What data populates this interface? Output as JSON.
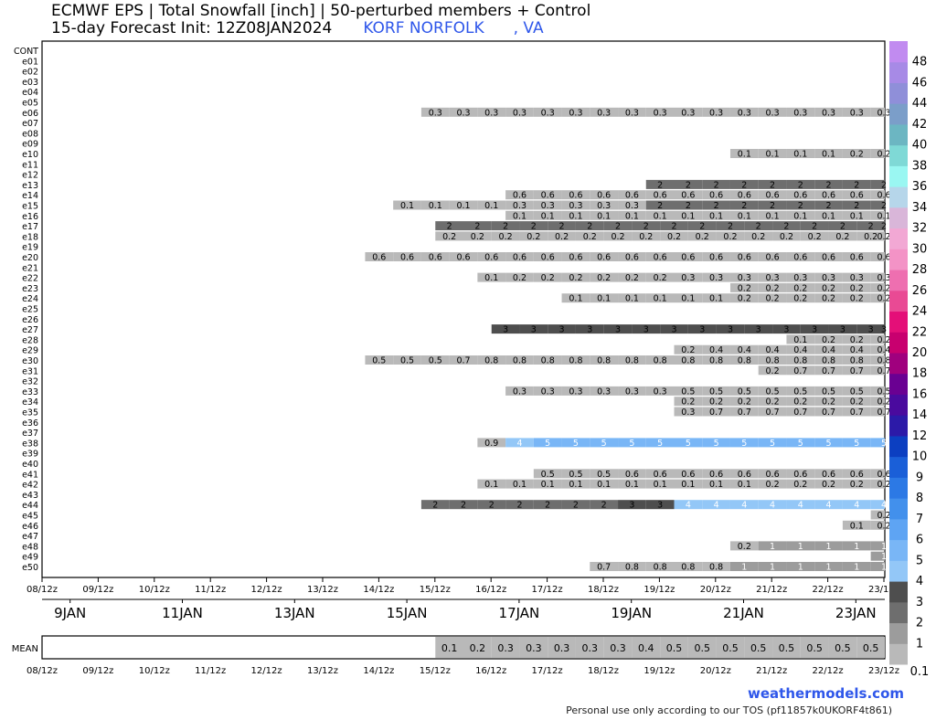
{
  "header": {
    "title_line1": "ECMWF EPS | Total Snowfall [inch] | 50-perturbed members + Control",
    "title_line2": "15-day Forecast Init: 12Z08JAN2024",
    "location": "KORF NORFOLK",
    "state": ", VA"
  },
  "footer": {
    "credit": "weathermodels.com",
    "tos": "Personal use only according to our TOS (pf11857k0UKORF4t861)"
  },
  "chart_data": {
    "type": "heatmap",
    "title": "ECMWF EPS | Total Snowfall [inch] | 50-perturbed members + Control",
    "members": [
      "CONT",
      "e01",
      "e02",
      "e03",
      "e04",
      "e05",
      "e06",
      "e07",
      "e08",
      "e09",
      "e10",
      "e11",
      "e12",
      "e13",
      "e14",
      "e15",
      "e16",
      "e17",
      "e18",
      "e19",
      "e20",
      "e21",
      "e22",
      "e23",
      "e24",
      "e25",
      "e26",
      "e27",
      "e28",
      "e29",
      "e30",
      "e31",
      "e32",
      "e33",
      "e34",
      "e35",
      "e36",
      "e37",
      "e38",
      "e39",
      "e40",
      "e41",
      "e42",
      "e43",
      "e44",
      "e45",
      "e46",
      "e47",
      "e48",
      "e49",
      "e50"
    ],
    "time_ticks": [
      "08/12z",
      "09/12z",
      "10/12z",
      "11/12z",
      "12/12z",
      "13/12z",
      "14/12z",
      "15/12z",
      "16/12z",
      "17/12z",
      "18/12z",
      "19/12z",
      "20/12z",
      "21/12z",
      "22/12z",
      "23/12z"
    ],
    "day_labels": [
      "9JAN",
      "11JAN",
      "13JAN",
      "15JAN",
      "17JAN",
      "19JAN",
      "21JAN",
      "23JAN"
    ],
    "step_hours": 12,
    "first_step": "08/12z",
    "n_steps": 31,
    "rows": {
      "e06": {
        "start": 14,
        "values": [
          "0.3",
          "0.3",
          "0.3",
          "0.3",
          "0.3",
          "0.3",
          "0.3",
          "0.3",
          "0.3",
          "0.3",
          "0.3",
          "0.3",
          "0.3",
          "0.3",
          "0.3",
          "0.3",
          "0.3"
        ]
      },
      "e10": {
        "start": 25,
        "values": [
          "0.1",
          "0.1",
          "0.1",
          "0.1",
          "0.2",
          "0.2"
        ]
      },
      "e13": {
        "start": 22,
        "values": [
          "2",
          "2",
          "2",
          "2",
          "2",
          "2",
          "2",
          "2",
          "2"
        ]
      },
      "e14": {
        "start": 17,
        "values": [
          "0.6",
          "0.6",
          "0.6",
          "0.6",
          "0.6",
          "0.6",
          "0.6",
          "0.6",
          "0.6",
          "0.6",
          "0.6",
          "0.6",
          "0.6",
          "0.6"
        ]
      },
      "e15": {
        "start": 13,
        "values": [
          "0.1",
          "0.1",
          "0.1",
          "0.1",
          "0.3",
          "0.3",
          "0.3",
          "0.3",
          "0.3",
          "2",
          "2",
          "2",
          "2",
          "2",
          "2",
          "2",
          "2",
          "2"
        ]
      },
      "e16": {
        "start": 17,
        "values": [
          "0.1",
          "0.1",
          "0.1",
          "0.1",
          "0.1",
          "0.1",
          "0.1",
          "0.1",
          "0.1",
          "0.1",
          "0.1",
          "0.1",
          "0.1",
          "0.1"
        ]
      },
      "e17": {
        "start": 14.5,
        "values": [
          "2",
          "2",
          "2",
          "2",
          "2",
          "2",
          "2",
          "2",
          "2",
          "2",
          "2",
          "2",
          "2",
          "2",
          "2",
          "2",
          "2"
        ]
      },
      "e18": {
        "start": 14.5,
        "values": [
          "0.2",
          "0.2",
          "0.2",
          "0.2",
          "0.2",
          "0.2",
          "0.2",
          "0.2",
          "0.2",
          "0.2",
          "0.2",
          "0.2",
          "0.2",
          "0.2",
          "0.2",
          "0.2",
          "0.2"
        ]
      },
      "e20": {
        "start": 12,
        "values": [
          "0.6",
          "0.6",
          "0.6",
          "0.6",
          "0.6",
          "0.6",
          "0.6",
          "0.6",
          "0.6",
          "0.6",
          "0.6",
          "0.6",
          "0.6",
          "0.6",
          "0.6",
          "0.6",
          "0.6",
          "0.6",
          "0.6"
        ]
      },
      "e22": {
        "start": 16,
        "values": [
          "0.1",
          "0.2",
          "0.2",
          "0.2",
          "0.2",
          "0.2",
          "0.2",
          "0.3",
          "0.3",
          "0.3",
          "0.3",
          "0.3",
          "0.3",
          "0.3",
          "0.3"
        ]
      },
      "e23": {
        "start": 25,
        "values": [
          "0.2",
          "0.2",
          "0.2",
          "0.2",
          "0.2",
          "0.2"
        ]
      },
      "e24": {
        "start": 19,
        "values": [
          "0.1",
          "0.1",
          "0.1",
          "0.1",
          "0.1",
          "0.1",
          "0.2",
          "0.2",
          "0.2",
          "0.2",
          "0.2",
          "0.2"
        ]
      },
      "e27": {
        "start": 16.5,
        "values": [
          "3",
          "3",
          "3",
          "3",
          "3",
          "3",
          "3",
          "3",
          "3",
          "3",
          "3",
          "3",
          "3",
          "3",
          "3"
        ]
      },
      "e28": {
        "start": 27,
        "values": [
          "0.1",
          "0.2",
          "0.2",
          "0.2"
        ]
      },
      "e29": {
        "start": 23,
        "values": [
          "0.2",
          "0.4",
          "0.4",
          "0.4",
          "0.4",
          "0.4",
          "0.4",
          "0.4"
        ]
      },
      "e30": {
        "start": 12,
        "values": [
          "0.5",
          "0.5",
          "0.5",
          "0.7",
          "0.8",
          "0.8",
          "0.8",
          "0.8",
          "0.8",
          "0.8",
          "0.8",
          "0.8",
          "0.8",
          "0.8",
          "0.8",
          "0.8",
          "0.8",
          "0.8",
          "0.8"
        ]
      },
      "e31": {
        "start": 26,
        "values": [
          "0.2",
          "0.7",
          "0.7",
          "0.7",
          "0.7"
        ]
      },
      "e33": {
        "start": 17,
        "values": [
          "0.3",
          "0.3",
          "0.3",
          "0.3",
          "0.3",
          "0.3",
          "0.5",
          "0.5",
          "0.5",
          "0.5",
          "0.5",
          "0.5",
          "0.5",
          "0.5"
        ]
      },
      "e34": {
        "start": 23,
        "values": [
          "0.2",
          "0.2",
          "0.2",
          "0.2",
          "0.2",
          "0.2",
          "0.2",
          "0.2"
        ]
      },
      "e35": {
        "start": 23,
        "values": [
          "0.3",
          "0.7",
          "0.7",
          "0.7",
          "0.7",
          "0.7",
          "0.7",
          "0.7"
        ]
      },
      "e38": {
        "start": 16,
        "values": [
          "0.9",
          "4",
          "5",
          "5",
          "5",
          "5",
          "5",
          "5",
          "5",
          "5",
          "5",
          "5",
          "5",
          "5",
          "5"
        ]
      },
      "e41": {
        "start": 18,
        "values": [
          "0.5",
          "0.5",
          "0.5",
          "0.6",
          "0.6",
          "0.6",
          "0.6",
          "0.6",
          "0.6",
          "0.6",
          "0.6",
          "0.6",
          "0.6"
        ]
      },
      "e42": {
        "start": 16,
        "values": [
          "0.1",
          "0.1",
          "0.1",
          "0.1",
          "0.1",
          "0.1",
          "0.1",
          "0.1",
          "0.1",
          "0.1",
          "0.2",
          "0.2",
          "0.2",
          "0.2",
          "0.2"
        ]
      },
      "e44": {
        "start": 14,
        "values": [
          "2",
          "2",
          "2",
          "2",
          "2",
          "2",
          "2",
          "3",
          "3",
          "4",
          "4",
          "4",
          "4",
          "4",
          "4",
          "4",
          "4"
        ]
      },
      "e45": {
        "start": 30,
        "values": [
          "0.2"
        ]
      },
      "e46": {
        "start": 29,
        "values": [
          "0.1",
          "0.2"
        ]
      },
      "e48": {
        "start": 25,
        "values": [
          "0.2",
          "1",
          "1",
          "1",
          "1",
          "1"
        ]
      },
      "e49": {
        "start": 30,
        "values": [
          "1"
        ]
      },
      "e50": {
        "start": 20,
        "values": [
          "0.7",
          "0.8",
          "0.8",
          "0.8",
          "0.8",
          "1",
          "1",
          "1",
          "1",
          "1",
          "1"
        ]
      }
    },
    "mean": {
      "start": 14.5,
      "values": [
        "0.1",
        "0.2",
        "0.3",
        "0.3",
        "0.3",
        "0.3",
        "0.3",
        "0.4",
        "0.5",
        "0.5",
        "0.5",
        "0.5",
        "0.5",
        "0.5",
        "0.5",
        "0.5"
      ]
    },
    "colorbar": {
      "levels": [
        "0.1",
        "1",
        "2",
        "3",
        "4",
        "5",
        "6",
        "7",
        "8",
        "9",
        "10",
        "12",
        "14",
        "16",
        "18",
        "20",
        "22",
        "24",
        "26",
        "28",
        "30",
        "32",
        "34",
        "36",
        "38",
        "40",
        "42",
        "44",
        "46",
        "48"
      ],
      "colors": [
        "#b9b9b9",
        "#9c9c9c",
        "#6e6e6e",
        "#4e4e4e",
        "#93c7f7",
        "#79b6f6",
        "#5ea4f3",
        "#4290ec",
        "#2c79e5",
        "#1a5fd8",
        "#0c3fc1",
        "#2c1aa8",
        "#4a0a9e",
        "#6a0092",
        "#a0007e",
        "#c8006f",
        "#e40f78",
        "#e94a94",
        "#ee6fb0",
        "#f393c6",
        "#f2a8d4",
        "#d9b6d9",
        "#b6d6ea",
        "#9af7f2",
        "#7fd9d6",
        "#6cb6c2",
        "#7b9ec9",
        "#8f8fd9",
        "#a78ae6",
        "#c18bf0"
      ]
    }
  }
}
